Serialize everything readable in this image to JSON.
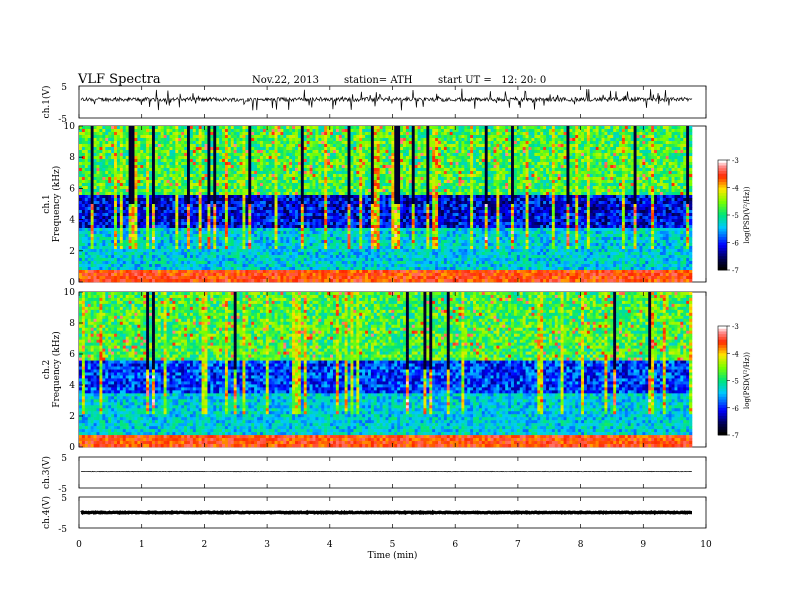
{
  "header": {
    "title": "VLF Spectra",
    "date": "Nov.22, 2013",
    "station": "station= ATH",
    "start_ut": "start UT =   12: 20: 0"
  },
  "chart_data": [
    {
      "type": "line",
      "panel": "ch1-waveform",
      "ylabel": "ch.1(V)",
      "yticks": [
        "5",
        "-5"
      ],
      "ylim": [
        -5,
        5
      ],
      "xlim": [
        0,
        10
      ],
      "description_values": {
        "baseline_V": 0.8,
        "spike_amplitude_V": 3.5
      }
    },
    {
      "type": "heatmap",
      "panel": "ch1-spectrogram",
      "ylabel": "ch.1 Frequency (kHz)",
      "yticks": [
        "0",
        "2",
        "4",
        "6",
        "8",
        "10"
      ],
      "ylim": [
        0,
        10
      ],
      "xlim": [
        0,
        9.8
      ],
      "colorbar": {
        "label": "log(PSD(V²/Hz))",
        "ticks": [
          "-3",
          "-4",
          "-5",
          "-6",
          "-7"
        ],
        "range": [
          -7,
          -3
        ]
      }
    },
    {
      "type": "heatmap",
      "panel": "ch2-spectrogram",
      "ylabel": "ch.2 Frequency (kHz)",
      "yticks": [
        "0",
        "2",
        "4",
        "6",
        "8",
        "10"
      ],
      "ylim": [
        0,
        10
      ],
      "xlim": [
        0,
        9.8
      ],
      "colorbar": {
        "label": "log(PSD(V²/Hz))",
        "ticks": [
          "-3",
          "-4",
          "-5",
          "-6",
          "-7"
        ],
        "range": [
          -7,
          -3
        ]
      }
    },
    {
      "type": "line",
      "panel": "ch3-waveform",
      "ylabel": "ch.3(V)",
      "yticks": [
        "5",
        "-5"
      ],
      "ylim": [
        -5,
        5
      ],
      "xlim": [
        0,
        10
      ],
      "description_values": {
        "baseline_V": 0.3
      }
    },
    {
      "type": "line",
      "panel": "ch4-waveform",
      "ylabel": "ch.4(V)",
      "yticks": [
        "5",
        "-5"
      ],
      "ylim": [
        -5,
        5
      ],
      "xlim": [
        0,
        10
      ],
      "description_values": {
        "baseline_V": 0.0
      }
    }
  ],
  "xaxis": {
    "label": "Time  (min)",
    "ticks": [
      "0",
      "1",
      "2",
      "3",
      "4",
      "5",
      "6",
      "7",
      "8",
      "9",
      "10"
    ],
    "xlim": [
      0,
      10
    ]
  }
}
